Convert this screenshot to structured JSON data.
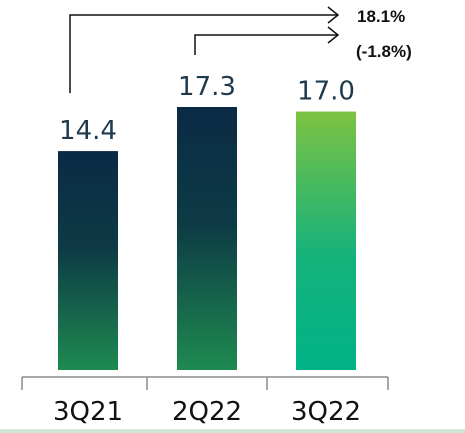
{
  "chart_data": {
    "type": "bar",
    "categories": [
      "3Q21",
      "2Q22",
      "3Q22"
    ],
    "values": [
      14.4,
      17.3,
      17.0
    ],
    "value_labels": [
      "14.4",
      "17.3",
      "17.0"
    ],
    "ylim": [
      0,
      17.3
    ],
    "grid": false,
    "legend": "none",
    "annotations": [
      {
        "text": "18.1%",
        "from": "3Q21",
        "to": "3Q22"
      },
      {
        "text": "(-1.8%)",
        "from": "2Q22",
        "to": "3Q22"
      }
    ],
    "colors": {
      "dark_top": "#0b2a45",
      "dark_bottom": "#1e8a50",
      "accent_top": "#7dc242",
      "accent_bottom": "#00b386",
      "axis": "#8c8c8c"
    }
  }
}
